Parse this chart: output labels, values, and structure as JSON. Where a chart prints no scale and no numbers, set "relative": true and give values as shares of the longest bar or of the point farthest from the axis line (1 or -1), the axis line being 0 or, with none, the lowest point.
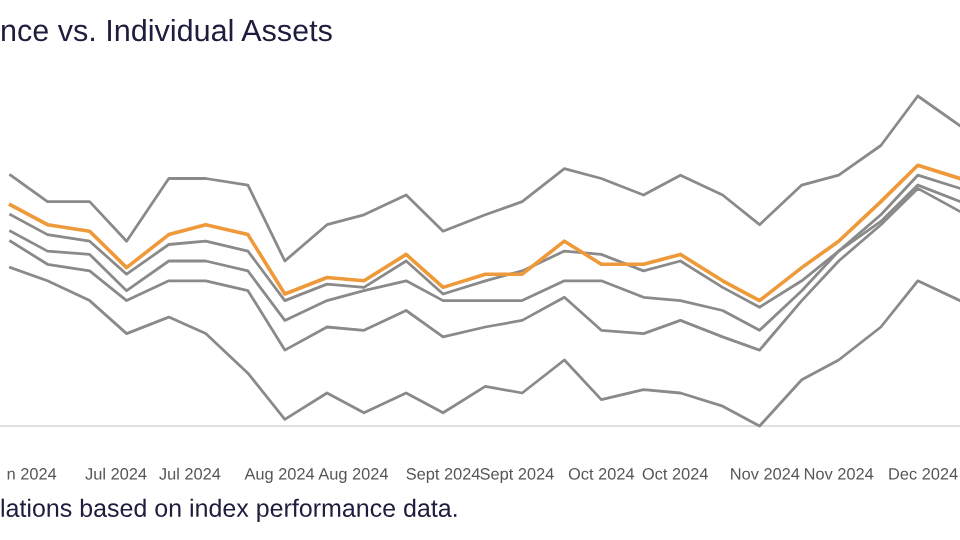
{
  "chart_data": {
    "type": "line",
    "title": "nce vs. Individual Assets",
    "relative": true,
    "annotations": [
      "lations based on index performance data."
    ],
    "x": [
      "2024-06-11",
      "2024-06-18",
      "2024-06-26",
      "2024-07-03",
      "2024-07-11",
      "2024-07-18",
      "2024-07-26",
      "2024-08-02",
      "2024-08-10",
      "2024-08-17",
      "2024-08-25",
      "2024-09-01",
      "2024-09-09",
      "2024-09-16",
      "2024-09-24",
      "2024-10-01",
      "2024-10-09",
      "2024-10-16",
      "2024-10-24",
      "2024-10-31",
      "2024-11-08",
      "2024-11-15",
      "2024-11-23",
      "2024-11-30",
      "2024-12-08"
    ],
    "xlim": [
      "2024-06-09",
      "2024-12-08"
    ],
    "xticks": [
      {
        "value": "2024-06-15",
        "label": "n 2024"
      },
      {
        "value": "2024-07-01",
        "label": "Jul 2024"
      },
      {
        "value": "2024-07-15",
        "label": "Jul 2024"
      },
      {
        "value": "2024-08-01",
        "label": "Aug 2024"
      },
      {
        "value": "2024-08-15",
        "label": "Aug 2024"
      },
      {
        "value": "2024-09-01",
        "label": "Sept 2024"
      },
      {
        "value": "2024-09-15",
        "label": "Sept 2024"
      },
      {
        "value": "2024-10-01",
        "label": "Oct 2024"
      },
      {
        "value": "2024-10-15",
        "label": "Oct 2024"
      },
      {
        "value": "2024-11-01",
        "label": "Nov 2024"
      },
      {
        "value": "2024-11-15",
        "label": "Nov 2024"
      },
      {
        "value": "2024-12-01",
        "label": "Dec 2024"
      }
    ],
    "legend": false,
    "marker": "none",
    "line_style": "solid",
    "series": [
      {
        "color": "#8a8a8a",
        "values": [
          0.76,
          0.68,
          0.68,
          0.56,
          0.75,
          0.75,
          0.73,
          0.5,
          0.61,
          0.64,
          0.7,
          0.59,
          0.64,
          0.68,
          0.78,
          0.75,
          0.7,
          0.76,
          0.7,
          0.61,
          0.73,
          0.76,
          0.85,
          1.0,
          0.91
        ]
      },
      {
        "color": "#8a8a8a",
        "values": [
          0.64,
          0.58,
          0.56,
          0.46,
          0.55,
          0.56,
          0.53,
          0.38,
          0.43,
          0.42,
          0.5,
          0.4,
          0.44,
          0.47,
          0.53,
          0.52,
          0.47,
          0.5,
          0.42,
          0.36,
          0.44,
          0.53,
          0.64,
          0.76,
          0.72
        ]
      },
      {
        "color": "#8a8a8a",
        "values": [
          0.59,
          0.53,
          0.52,
          0.41,
          0.5,
          0.5,
          0.47,
          0.32,
          0.38,
          0.41,
          0.44,
          0.38,
          0.38,
          0.38,
          0.44,
          0.44,
          0.39,
          0.38,
          0.35,
          0.29,
          0.41,
          0.53,
          0.62,
          0.73,
          0.68
        ]
      },
      {
        "color": "#8a8a8a",
        "values": [
          0.56,
          0.49,
          0.47,
          0.38,
          0.44,
          0.44,
          0.41,
          0.23,
          0.3,
          0.29,
          0.35,
          0.27,
          0.3,
          0.32,
          0.39,
          0.29,
          0.28,
          0.32,
          0.27,
          0.23,
          0.38,
          0.5,
          0.61,
          0.72,
          0.65
        ]
      },
      {
        "color": "#8a8a8a",
        "values": [
          0.48,
          0.44,
          0.38,
          0.28,
          0.33,
          0.28,
          0.16,
          0.02,
          0.1,
          0.04,
          0.1,
          0.04,
          0.12,
          0.1,
          0.2,
          0.08,
          0.11,
          0.1,
          0.06,
          0.0,
          0.14,
          0.2,
          0.3,
          0.44,
          0.38
        ]
      },
      {
        "color": "#ee9a3a",
        "values": [
          0.67,
          0.61,
          0.59,
          0.48,
          0.58,
          0.61,
          0.58,
          0.4,
          0.45,
          0.44,
          0.52,
          0.42,
          0.46,
          0.46,
          0.56,
          0.49,
          0.49,
          0.52,
          0.44,
          0.38,
          0.48,
          0.56,
          0.68,
          0.79,
          0.75
        ]
      }
    ]
  }
}
